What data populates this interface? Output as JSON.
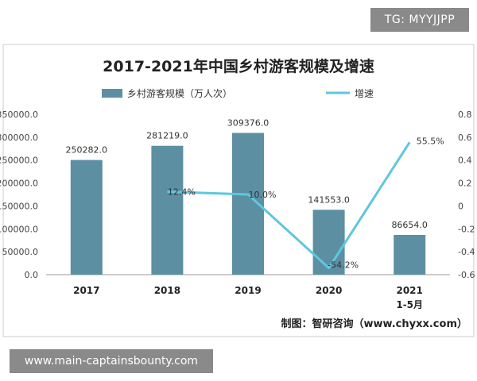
{
  "watermark_top": "TG: MYYJJPP",
  "watermark_bottom": "www.main-captainsbounty.com",
  "source": "制图：智研咨询（www.chyxx.com）",
  "colors": {
    "bar": "#5d8fa3",
    "line": "#5ec7df",
    "axis": "#bbbbbb",
    "text": "#333333"
  },
  "chart_data": {
    "type": "bar",
    "title": "2017-2021年中国乡村游客规模及增速",
    "categories": [
      [
        "2017"
      ],
      [
        "2018"
      ],
      [
        "2019"
      ],
      [
        "2020"
      ],
      [
        "2021",
        "1-5月"
      ]
    ],
    "series": [
      {
        "name": "乡村游客规模（万人次）",
        "type": "bar",
        "axis": "left",
        "values": [
          250282.0,
          281219.0,
          309376.0,
          141553.0,
          86654.0
        ],
        "labels": [
          "250282.0",
          "281219.0",
          "309376.0",
          "141553.0",
          "86654.0"
        ]
      },
      {
        "name": "增速",
        "type": "line",
        "axis": "right",
        "values": [
          null,
          0.124,
          0.1,
          -0.542,
          0.555
        ],
        "labels": [
          "",
          "12.4%",
          "10.0%",
          "-54.2%",
          "55.5%"
        ]
      }
    ],
    "y_left": {
      "min": 0,
      "max": 350000,
      "ticks": [
        "0.0",
        "50000.0",
        "100000.0",
        "150000.0",
        "200000.0",
        "250000.0",
        "300000.0",
        "350000.0"
      ]
    },
    "y_right": {
      "min": -0.6,
      "max": 0.8,
      "ticks": [
        "-0.6",
        "-0.4",
        "-0.2",
        "0",
        "0.2",
        "0.4",
        "0.6",
        "0.8"
      ]
    },
    "grid": false,
    "legend_position": "top"
  }
}
